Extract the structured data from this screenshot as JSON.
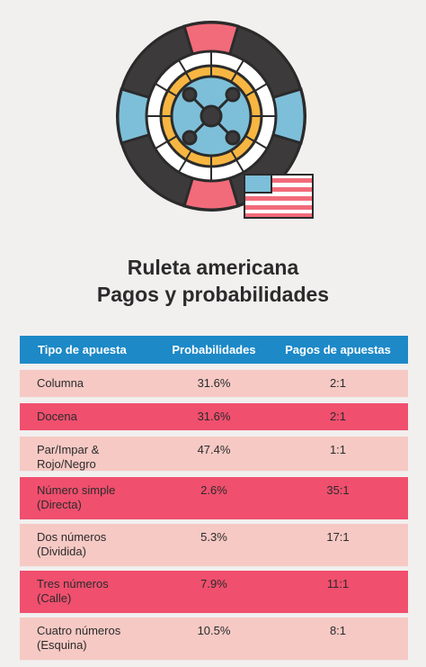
{
  "page": {
    "title_line1": "Ruleta americana",
    "title_line2": "Pagos y probabilidades"
  },
  "illustration": {
    "icons": [
      "roulette-wheel-icon",
      "us-flag-icon"
    ],
    "colors": {
      "dark": "#3d3a3c",
      "pink": "#f26b7a",
      "blue": "#7dbfd9",
      "yellow": "#f7b642",
      "outline": "#2b2b2b"
    }
  },
  "table": {
    "headers": [
      "Tipo de apuesta",
      "Probabilidades",
      "Pagos de apuestas"
    ],
    "rows": [
      {
        "tipo": "Columna",
        "prob": "31.6%",
        "pago": "2:1",
        "style": "light"
      },
      {
        "tipo": "Docena",
        "prob": "31.6%",
        "pago": "2:1",
        "style": "dark"
      },
      {
        "tipo": "Par/Impar &\nRojo/Negro",
        "prob": "47.4%",
        "pago": "1:1",
        "style": "light"
      },
      {
        "tipo": "Número simple\n(Directa)",
        "prob": "2.6%",
        "pago": "35:1",
        "style": "dark"
      },
      {
        "tipo": "Dos números\n(Dividida)",
        "prob": "5.3%",
        "pago": "17:1",
        "style": "light"
      },
      {
        "tipo": "Tres números\n(Calle)",
        "prob": "7.9%",
        "pago": "11:1",
        "style": "dark"
      },
      {
        "tipo": "Cuatro números\n(Esquina)",
        "prob": "10.5%",
        "pago": "8:1",
        "style": "light"
      }
    ],
    "colors": {
      "header_bg": "#1d89c7",
      "row_light": "#f6c9c4",
      "row_dark": "#f04f6e"
    }
  }
}
